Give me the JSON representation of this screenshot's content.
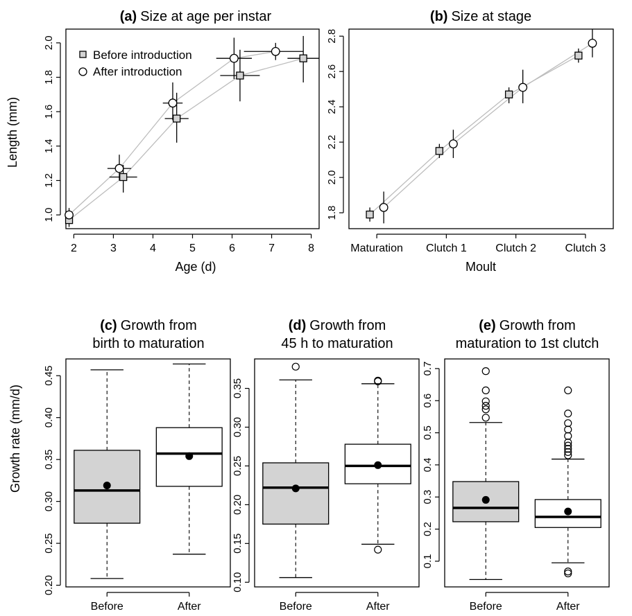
{
  "colors": {
    "before_fill": "#d3d3d3",
    "after_fill": "#ffffff",
    "stroke": "#000000",
    "connector": "#bdbdbd"
  },
  "chart_data": [
    {
      "id": "a",
      "type": "scatter",
      "panel_letter": "(a)",
      "title": "Size at age per instar",
      "xlabel": "Age (d)",
      "ylabel": "Length (mm)",
      "xlim": [
        1.8,
        8.2
      ],
      "ylim": [
        0.92,
        2.08
      ],
      "xticks": [
        2,
        3,
        4,
        5,
        6,
        7,
        8
      ],
      "yticks": [
        1.0,
        1.2,
        1.4,
        1.6,
        1.8,
        2.0
      ],
      "xtick_labels": [
        "2",
        "3",
        "4",
        "5",
        "6",
        "7",
        "8"
      ],
      "ytick_labels": [
        "1.0",
        "1.2",
        "1.4",
        "1.6",
        "1.8",
        "2.0"
      ],
      "legend": {
        "position": "top-left",
        "entries": [
          "Before introduction",
          "After introduction"
        ]
      },
      "series": [
        {
          "name": "Before introduction",
          "marker": "square",
          "points": [
            {
              "x": 1.88,
              "y": 0.97,
              "xlo": 1.88,
              "xhi": 1.88,
              "ylo": 0.93,
              "yhi": 1.0
            },
            {
              "x": 3.25,
              "y": 1.22,
              "xlo": 2.9,
              "xhi": 3.6,
              "ylo": 1.13,
              "yhi": 1.29
            },
            {
              "x": 4.6,
              "y": 1.56,
              "xlo": 4.3,
              "xhi": 4.9,
              "ylo": 1.42,
              "yhi": 1.71
            },
            {
              "x": 6.2,
              "y": 1.81,
              "xlo": 5.7,
              "xhi": 6.7,
              "ylo": 1.66,
              "yhi": 1.96
            },
            {
              "x": 7.8,
              "y": 1.91,
              "xlo": 7.4,
              "xhi": 8.2,
              "ylo": 1.77,
              "yhi": 2.04
            }
          ]
        },
        {
          "name": "After introduction",
          "marker": "circle",
          "points": [
            {
              "x": 1.88,
              "y": 1.0,
              "xlo": 1.88,
              "xhi": 1.88,
              "ylo": 0.96,
              "yhi": 1.04
            },
            {
              "x": 3.15,
              "y": 1.27,
              "xlo": 2.85,
              "xhi": 3.45,
              "ylo": 1.2,
              "yhi": 1.35
            },
            {
              "x": 4.5,
              "y": 1.65,
              "xlo": 4.25,
              "xhi": 4.75,
              "ylo": 1.55,
              "yhi": 1.77
            },
            {
              "x": 6.05,
              "y": 1.91,
              "xlo": 5.6,
              "xhi": 6.5,
              "ylo": 1.79,
              "yhi": 2.03
            },
            {
              "x": 7.1,
              "y": 1.95,
              "xlo": 6.3,
              "xhi": 7.8,
              "ylo": 1.9,
              "yhi": 2.0
            }
          ]
        }
      ]
    },
    {
      "id": "b",
      "type": "scatter",
      "panel_letter": "(b)",
      "title": "Size at stage",
      "xlabel": "Moult",
      "ylabel": "",
      "categories": [
        "Maturation",
        "Clutch 1",
        "Clutch 2",
        "Clutch 3"
      ],
      "ylim": [
        1.71,
        2.84
      ],
      "yticks": [
        1.8,
        2.0,
        2.2,
        2.4,
        2.6,
        2.8
      ],
      "ytick_labels": [
        "1.8",
        "2.0",
        "2.2",
        "2.4",
        "2.6",
        "2.8"
      ],
      "series": [
        {
          "name": "",
          "marker": "square",
          "offset": -0.1,
          "points": [
            {
              "y": 1.79,
              "ylo": 1.75,
              "yhi": 1.83
            },
            {
              "y": 2.15,
              "ylo": 2.11,
              "yhi": 2.19
            },
            {
              "y": 2.47,
              "ylo": 2.42,
              "yhi": 2.51
            },
            {
              "y": 2.69,
              "ylo": 2.65,
              "yhi": 2.73
            }
          ]
        },
        {
          "name": "",
          "marker": "circle",
          "offset": 0.1,
          "points": [
            {
              "y": 1.83,
              "ylo": 1.74,
              "yhi": 1.92
            },
            {
              "y": 2.19,
              "ylo": 2.11,
              "yhi": 2.27
            },
            {
              "y": 2.51,
              "ylo": 2.42,
              "yhi": 2.61
            },
            {
              "y": 2.76,
              "ylo": 2.68,
              "yhi": 2.84
            }
          ]
        }
      ]
    },
    {
      "id": "c",
      "type": "box",
      "panel_letter": "(c)",
      "title_lines": [
        "Growth from",
        "birth to maturation"
      ],
      "ylabel": "Growth rate (mm/d)",
      "categories": [
        "Before",
        "After"
      ],
      "ylim": [
        0.198,
        0.47
      ],
      "yticks": [
        0.2,
        0.25,
        0.3,
        0.35,
        0.4,
        0.45
      ],
      "ytick_labels": [
        "0.20",
        "0.25",
        "0.30",
        "0.35",
        "0.40",
        "0.45"
      ],
      "boxes": [
        {
          "group": "Before",
          "fill": "#d3d3d3",
          "whisker_low": 0.208,
          "q1": 0.274,
          "median": 0.313,
          "q3": 0.361,
          "whisker_high": 0.457,
          "mean": 0.319,
          "outliers": []
        },
        {
          "group": "After",
          "fill": "#ffffff",
          "whisker_low": 0.237,
          "q1": 0.318,
          "median": 0.357,
          "q3": 0.388,
          "whisker_high": 0.464,
          "mean": 0.354,
          "outliers": []
        }
      ]
    },
    {
      "id": "d",
      "type": "box",
      "panel_letter": "(d)",
      "title_lines": [
        "Growth from",
        "45 h to maturation"
      ],
      "ylabel": "",
      "categories": [
        "Before",
        "After"
      ],
      "ylim": [
        0.094,
        0.388
      ],
      "yticks": [
        0.1,
        0.15,
        0.2,
        0.25,
        0.3,
        0.35
      ],
      "ytick_labels": [
        "0.10",
        "0.15",
        "0.20",
        "0.25",
        "0.30",
        "0.35"
      ],
      "boxes": [
        {
          "group": "Before",
          "fill": "#d3d3d3",
          "whisker_low": 0.106,
          "q1": 0.175,
          "median": 0.222,
          "q3": 0.254,
          "whisker_high": 0.361,
          "mean": 0.221,
          "outliers": [
            0.378
          ]
        },
        {
          "group": "After",
          "fill": "#ffffff",
          "whisker_low": 0.149,
          "q1": 0.227,
          "median": 0.25,
          "q3": 0.278,
          "whisker_high": 0.356,
          "mean": 0.251,
          "outliers": [
            0.142,
            0.359,
            0.36
          ]
        }
      ]
    },
    {
      "id": "e",
      "type": "box",
      "panel_letter": "(e)",
      "title_lines": [
        "Growth from",
        "maturation to 1st clutch"
      ],
      "ylabel": "",
      "categories": [
        "Before",
        "After"
      ],
      "ylim": [
        0.02,
        0.73
      ],
      "yticks": [
        0.1,
        0.2,
        0.3,
        0.4,
        0.5,
        0.6,
        0.7
      ],
      "ytick_labels": [
        "0.1",
        "0.2",
        "0.3",
        "0.4",
        "0.5",
        "0.6",
        "0.7"
      ],
      "boxes": [
        {
          "group": "Before",
          "fill": "#d3d3d3",
          "whisker_low": 0.043,
          "q1": 0.223,
          "median": 0.266,
          "q3": 0.348,
          "whisker_high": 0.532,
          "mean": 0.291,
          "outliers": [
            0.547,
            0.573,
            0.584,
            0.598,
            0.632,
            0.692
          ]
        },
        {
          "group": "After",
          "fill": "#ffffff",
          "whisker_low": 0.095,
          "q1": 0.205,
          "median": 0.238,
          "q3": 0.292,
          "whisker_high": 0.418,
          "mean": 0.255,
          "outliers": [
            0.062,
            0.068,
            0.43,
            0.44,
            0.45,
            0.46,
            0.47,
            0.49,
            0.51,
            0.53,
            0.56,
            0.632
          ]
        }
      ]
    }
  ]
}
